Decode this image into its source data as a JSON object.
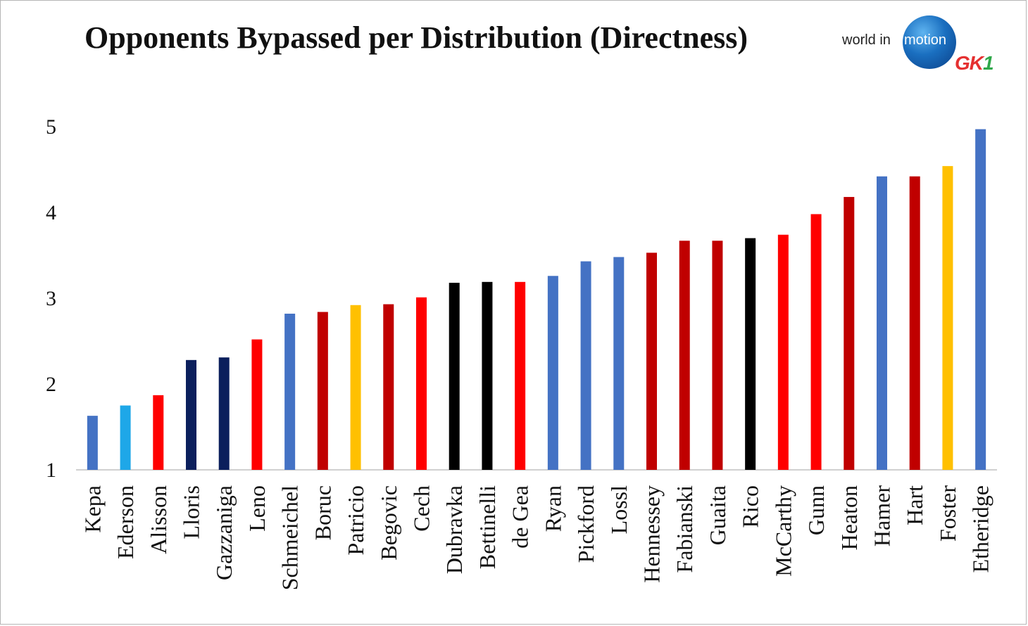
{
  "chart_data": {
    "type": "bar",
    "title": "Opponents Bypassed per Distribution (Directness)",
    "xlabel": "",
    "ylabel": "",
    "ylim": [
      1,
      5
    ],
    "yticks": [
      1,
      2,
      3,
      4,
      5
    ],
    "grid": false,
    "legend": "none",
    "categories": [
      "Kepa",
      "Ederson",
      "Alisson",
      "Lloris",
      "Gazzaniga",
      "Leno",
      "Schmeichel",
      "Boruc",
      "Patricio",
      "Begovic",
      "Cech",
      "Dubravka",
      "Bettinelli",
      "de Gea",
      "Ryan",
      "Pickford",
      "Lossl",
      "Hennessey",
      "Fabianski",
      "Guaita",
      "Rico",
      "McCarthy",
      "Gunn",
      "Heaton",
      "Hamer",
      "Hart",
      "Foster",
      "Etheridge"
    ],
    "values": [
      1.63,
      1.75,
      1.87,
      2.28,
      2.31,
      2.52,
      2.82,
      2.84,
      2.92,
      2.93,
      3.01,
      3.18,
      3.19,
      3.19,
      3.26,
      3.43,
      3.48,
      3.53,
      3.67,
      3.67,
      3.7,
      3.74,
      3.98,
      4.18,
      4.42,
      4.42,
      4.54,
      4.97
    ],
    "colors": [
      "#4472c4",
      "#1ea7e8",
      "#ff0000",
      "#0b1f5c",
      "#0b1f5c",
      "#ff0000",
      "#4472c4",
      "#c00000",
      "#ffc000",
      "#c00000",
      "#ff0000",
      "#000000",
      "#000000",
      "#ff0000",
      "#4472c4",
      "#4472c4",
      "#4472c4",
      "#c00000",
      "#c00000",
      "#c00000",
      "#000000",
      "#ff0000",
      "#ff0000",
      "#c00000",
      "#4472c4",
      "#c00000",
      "#ffc000",
      "#4472c4"
    ]
  },
  "logo": {
    "text_world_in": "world in",
    "text_motion": "motion",
    "text_gk": "GK",
    "text_one": "1"
  }
}
